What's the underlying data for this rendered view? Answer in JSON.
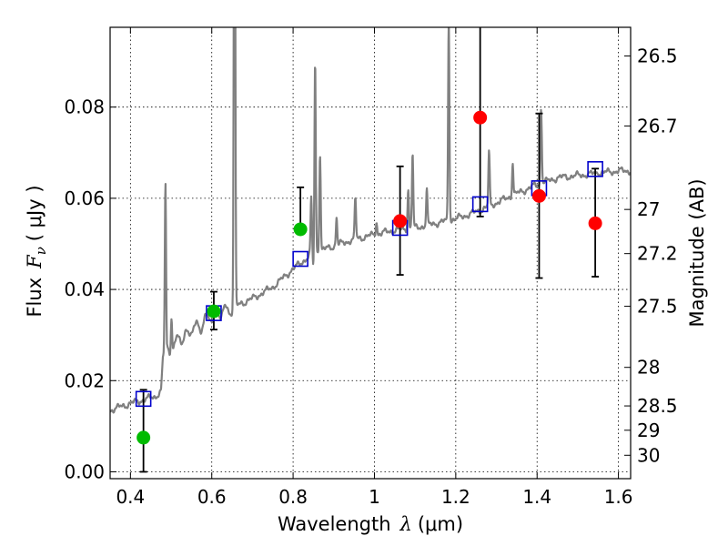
{
  "chart_data": {
    "type": "scatter",
    "xlabel": "Wavelength",
    "xlabel_symbol": "λ",
    "xlabel_unit": "(μm)",
    "ylabel": "Flux",
    "ylabel_symbol": "F",
    "ylabel_sub": "ν",
    "ylabel_unit": "( μJy )",
    "y2label": "Magnitude (AB)",
    "xlim": [
      0.35,
      1.63
    ],
    "ylim": [
      -0.0015,
      0.0975
    ],
    "grid": true,
    "x_ticks": [
      0.4,
      0.6,
      0.8,
      1.0,
      1.2,
      1.4,
      1.6
    ],
    "x_tick_labels": [
      "0.4",
      "0.6",
      "0.8",
      "1",
      "1.2",
      "1.4",
      "1.6"
    ],
    "y_ticks": [
      0.0,
      0.02,
      0.04,
      0.06,
      0.08
    ],
    "y_tick_labels": [
      "0.00",
      "0.02",
      "0.04",
      "0.06",
      "0.08"
    ],
    "mag_ticks": [
      26.5,
      26.7,
      27,
      27.2,
      27.5,
      28,
      28.5,
      29,
      30
    ],
    "mag_tick_labels": [
      "26.5",
      "26.7",
      "27",
      "27.2",
      "27.5",
      "28",
      "28.5",
      "29",
      "30"
    ],
    "colors": {
      "spectrum": "#808080",
      "model": "#0000cc",
      "detection_green": "#00bb00",
      "detection_red": "#ff0000",
      "errorbar": "#000000",
      "grid": "#000000"
    },
    "spectrum": {
      "name": "",
      "continuum": [
        [
          0.35,
          0.0135
        ],
        [
          0.4,
          0.015
        ],
        [
          0.46,
          0.0165
        ],
        [
          0.475,
          0.0175
        ],
        [
          0.48,
          0.025
        ],
        [
          0.5,
          0.027
        ],
        [
          0.52,
          0.029
        ],
        [
          0.55,
          0.031
        ],
        [
          0.6,
          0.034
        ],
        [
          0.65,
          0.036
        ],
        [
          0.7,
          0.038
        ],
        [
          0.75,
          0.0405
        ],
        [
          0.8,
          0.0445
        ],
        [
          0.85,
          0.048
        ],
        [
          0.9,
          0.0495
        ],
        [
          0.95,
          0.051
        ],
        [
          1.0,
          0.052
        ],
        [
          1.05,
          0.053
        ],
        [
          1.1,
          0.0535
        ],
        [
          1.15,
          0.0545
        ],
        [
          1.2,
          0.0555
        ],
        [
          1.25,
          0.057
        ],
        [
          1.3,
          0.059
        ],
        [
          1.35,
          0.061
        ],
        [
          1.4,
          0.063
        ],
        [
          1.45,
          0.0645
        ],
        [
          1.5,
          0.065
        ],
        [
          1.55,
          0.0655
        ],
        [
          1.6,
          0.066
        ],
        [
          1.63,
          0.066
        ]
      ],
      "lines": [
        [
          0.486,
          0.063
        ],
        [
          0.501,
          0.035
        ],
        [
          0.656,
          0.18
        ],
        [
          0.6716,
          0.037
        ],
        [
          0.8446,
          0.06
        ],
        [
          0.8498,
          0.045
        ],
        [
          0.8542,
          0.09
        ],
        [
          0.8662,
          0.07
        ],
        [
          0.9069,
          0.056
        ],
        [
          0.9531,
          0.06
        ],
        [
          1.0049,
          0.055
        ],
        [
          1.0938,
          0.07
        ],
        [
          1.083,
          0.062
        ],
        [
          1.1287,
          0.062
        ],
        [
          1.1828,
          0.1
        ],
        [
          1.2818,
          0.07
        ],
        [
          1.34,
          0.068
        ],
        [
          1.41,
          0.08
        ],
        [
          1.55,
          0.066
        ]
      ]
    },
    "model_points": {
      "x": [
        0.432,
        0.605,
        0.818,
        1.063,
        1.26,
        1.405,
        1.543
      ],
      "y": [
        0.016,
        0.0348,
        0.0467,
        0.0535,
        0.0587,
        0.0622,
        0.0664
      ]
    },
    "observations": {
      "x": [
        0.432,
        0.605,
        0.818,
        1.063,
        1.26,
        1.405,
        1.543
      ],
      "y": [
        0.0075,
        0.0352,
        0.0532,
        0.055,
        0.0777,
        0.0605,
        0.0545
      ],
      "yerr_low": [
        0.0075,
        0.004,
        0.0,
        0.0118,
        0.0217,
        0.018,
        0.0117
      ],
      "yerr_high": [
        0.0105,
        0.0043,
        0.0092,
        0.012,
        0.03,
        0.0181,
        0.012
      ],
      "colors": [
        "green",
        "green",
        "green",
        "red",
        "red",
        "red",
        "red"
      ]
    }
  }
}
